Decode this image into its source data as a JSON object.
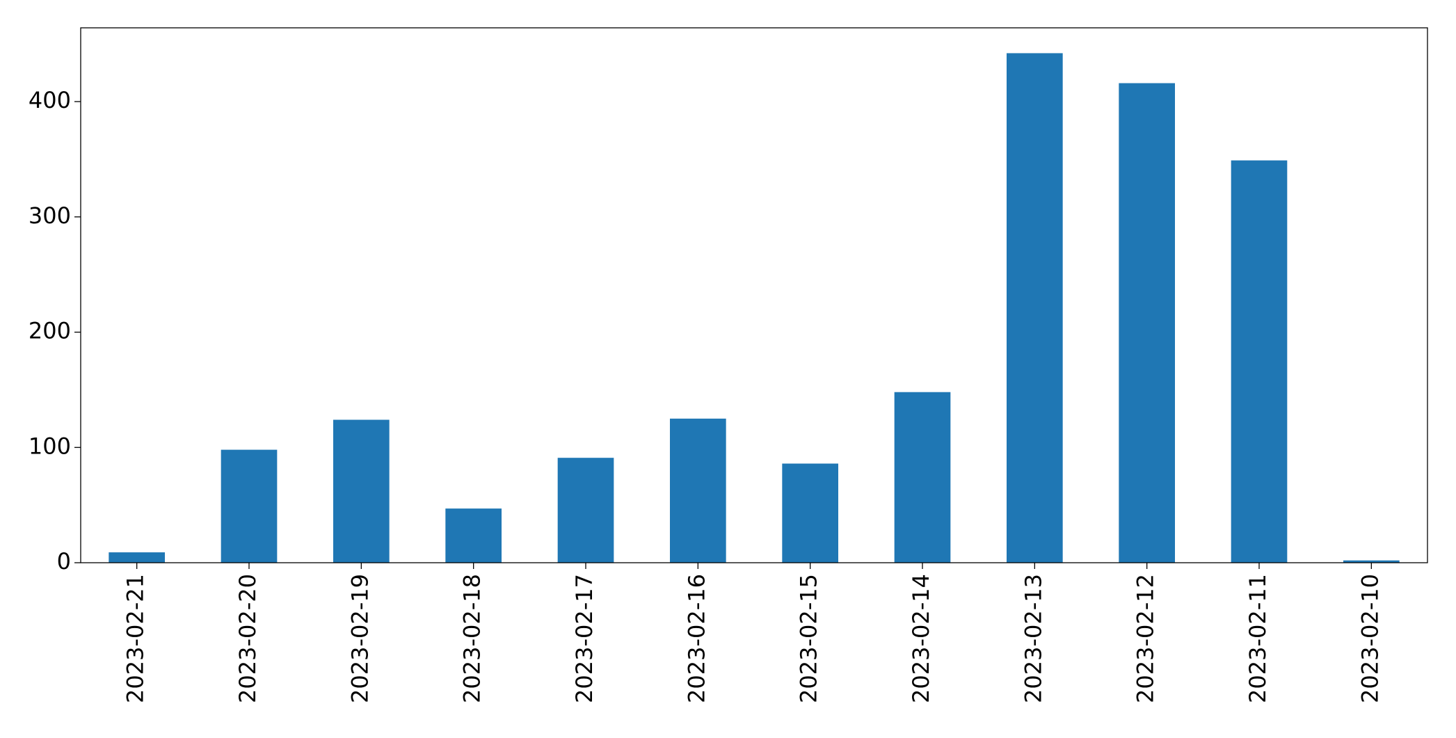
{
  "chart_data": {
    "type": "bar",
    "categories": [
      "2023-02-21",
      "2023-02-20",
      "2023-02-19",
      "2023-02-18",
      "2023-02-17",
      "2023-02-16",
      "2023-02-15",
      "2023-02-14",
      "2023-02-13",
      "2023-02-12",
      "2023-02-11",
      "2023-02-10"
    ],
    "values": [
      9,
      98,
      124,
      47,
      91,
      125,
      86,
      148,
      442,
      416,
      349,
      2
    ],
    "color": "#1f77b4",
    "ylim": [
      0,
      464
    ],
    "yticks": [
      0,
      100,
      200,
      300,
      400
    ],
    "grid": false
  }
}
